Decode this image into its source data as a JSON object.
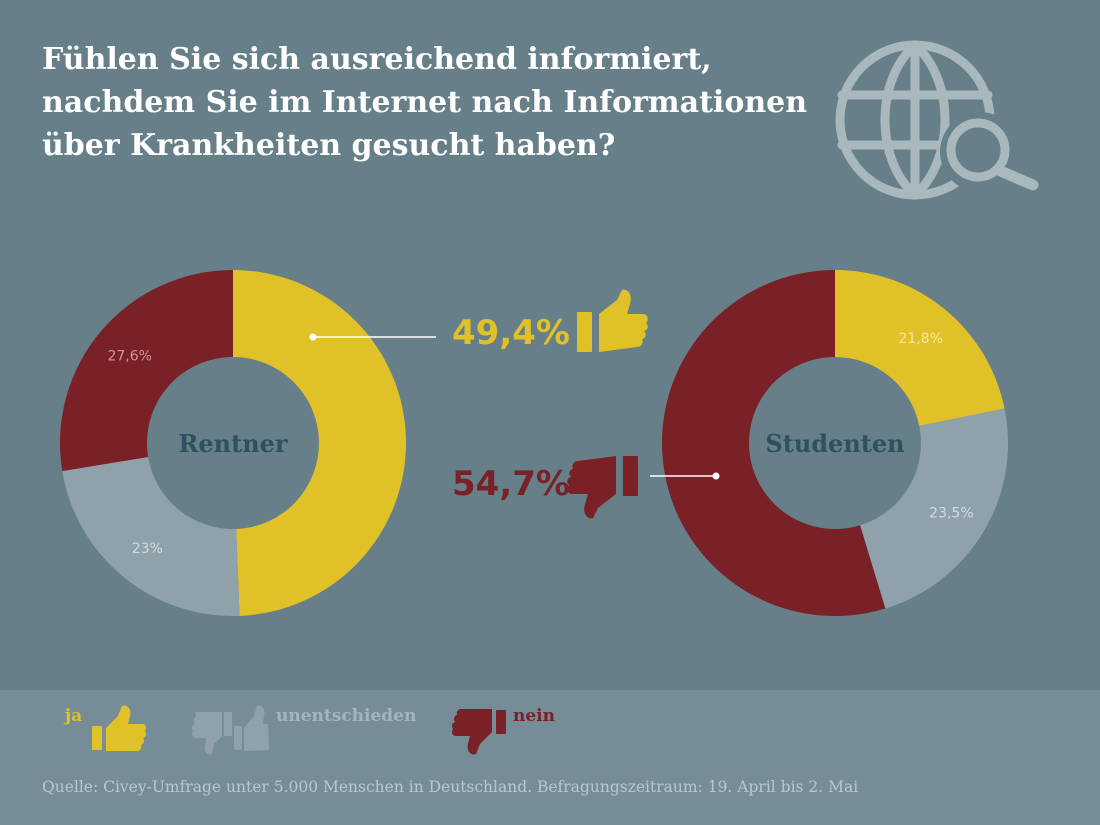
{
  "title_lines": [
    "Fühlen Sie sich ausreichend informiert,",
    "nachdem Sie im Internet nach Informationen",
    "über Krankheiten gesucht haben?"
  ],
  "colors": {
    "ja": "#e0c228",
    "unentschieden": "#8fa2ab",
    "nein": "#7a2127",
    "background": "#667f89",
    "legend_background": "#768d97"
  },
  "chart_data": [
    {
      "type": "pie",
      "variant": "donut",
      "center_label": "Rentner",
      "slices": [
        {
          "name": "ja",
          "value": 49.4,
          "label": ""
        },
        {
          "name": "unentschieden",
          "value": 23.0,
          "label": "23%"
        },
        {
          "name": "nein",
          "value": 27.6,
          "label": "27,6%"
        }
      ],
      "callout": {
        "slice": "ja",
        "text": "49,4%",
        "icon": "thumbs-up-icon"
      }
    },
    {
      "type": "pie",
      "variant": "donut",
      "center_label": "Studenten",
      "slices": [
        {
          "name": "ja",
          "value": 21.8,
          "label": "21,8%"
        },
        {
          "name": "unentschieden",
          "value": 23.5,
          "label": "23,5%"
        },
        {
          "name": "nein",
          "value": 54.7,
          "label": ""
        }
      ],
      "callout": {
        "slice": "nein",
        "text": "54,7%",
        "icon": "thumbs-down-icon"
      }
    }
  ],
  "legend": [
    {
      "key": "ja",
      "label": "ja",
      "icon": "thumbs-up-icon"
    },
    {
      "key": "unentschieden",
      "label": "unentschieden",
      "icon": "thumbs-up-down-icon"
    },
    {
      "key": "nein",
      "label": "nein",
      "icon": "thumbs-down-icon"
    }
  ],
  "source": "Quelle: Civey-Umfrage unter 5.000 Menschen in Deutschland. Befragungszeitraum: 19. April bis 2. Mai"
}
